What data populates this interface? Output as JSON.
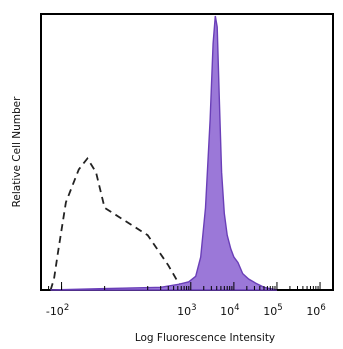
{
  "chart_data": {
    "type": "area",
    "title": "",
    "xlabel": "Log Fluorescence Intensity",
    "ylabel": "Relative Cell Number",
    "x_scale": "biexponential",
    "x_ticks": [
      {
        "value": -100,
        "base": "-10",
        "exp": "2"
      },
      {
        "value": 1000,
        "base": "10",
        "exp": "3"
      },
      {
        "value": 10000,
        "base": "10",
        "exp": "4"
      },
      {
        "value": 100000,
        "base": "10",
        "exp": "5"
      },
      {
        "value": 1000000,
        "base": "10",
        "exp": "6"
      }
    ],
    "ylim": [
      0,
      100
    ],
    "grid": false,
    "legend": "none",
    "series": [
      {
        "style": "dashed outline",
        "color": "#222222",
        "points": [
          [
            -180,
            0
          ],
          [
            -150,
            4
          ],
          [
            -120,
            14
          ],
          [
            -90,
            32
          ],
          [
            -60,
            44
          ],
          [
            -40,
            48
          ],
          [
            -20,
            43
          ],
          [
            0,
            30
          ],
          [
            100,
            20
          ],
          [
            300,
            9
          ],
          [
            500,
            3
          ],
          [
            700,
            0
          ]
        ]
      },
      {
        "style": "filled",
        "color": "#9b78d8",
        "stroke": "#6a3fb8",
        "points": [
          [
            -180,
            0
          ],
          [
            0,
            0.5
          ],
          [
            200,
            1
          ],
          [
            500,
            2
          ],
          [
            900,
            3
          ],
          [
            1300,
            5
          ],
          [
            1700,
            12
          ],
          [
            2200,
            30
          ],
          [
            2800,
            62
          ],
          [
            3300,
            90
          ],
          [
            3700,
            100
          ],
          [
            4100,
            96
          ],
          [
            4600,
            70
          ],
          [
            5200,
            43
          ],
          [
            6000,
            28
          ],
          [
            7000,
            20
          ],
          [
            8500,
            15
          ],
          [
            10000,
            12
          ],
          [
            12500,
            10
          ],
          [
            16000,
            6
          ],
          [
            22000,
            4
          ],
          [
            32000,
            2.5
          ],
          [
            50000,
            1
          ],
          [
            100000,
            0
          ]
        ]
      }
    ]
  }
}
